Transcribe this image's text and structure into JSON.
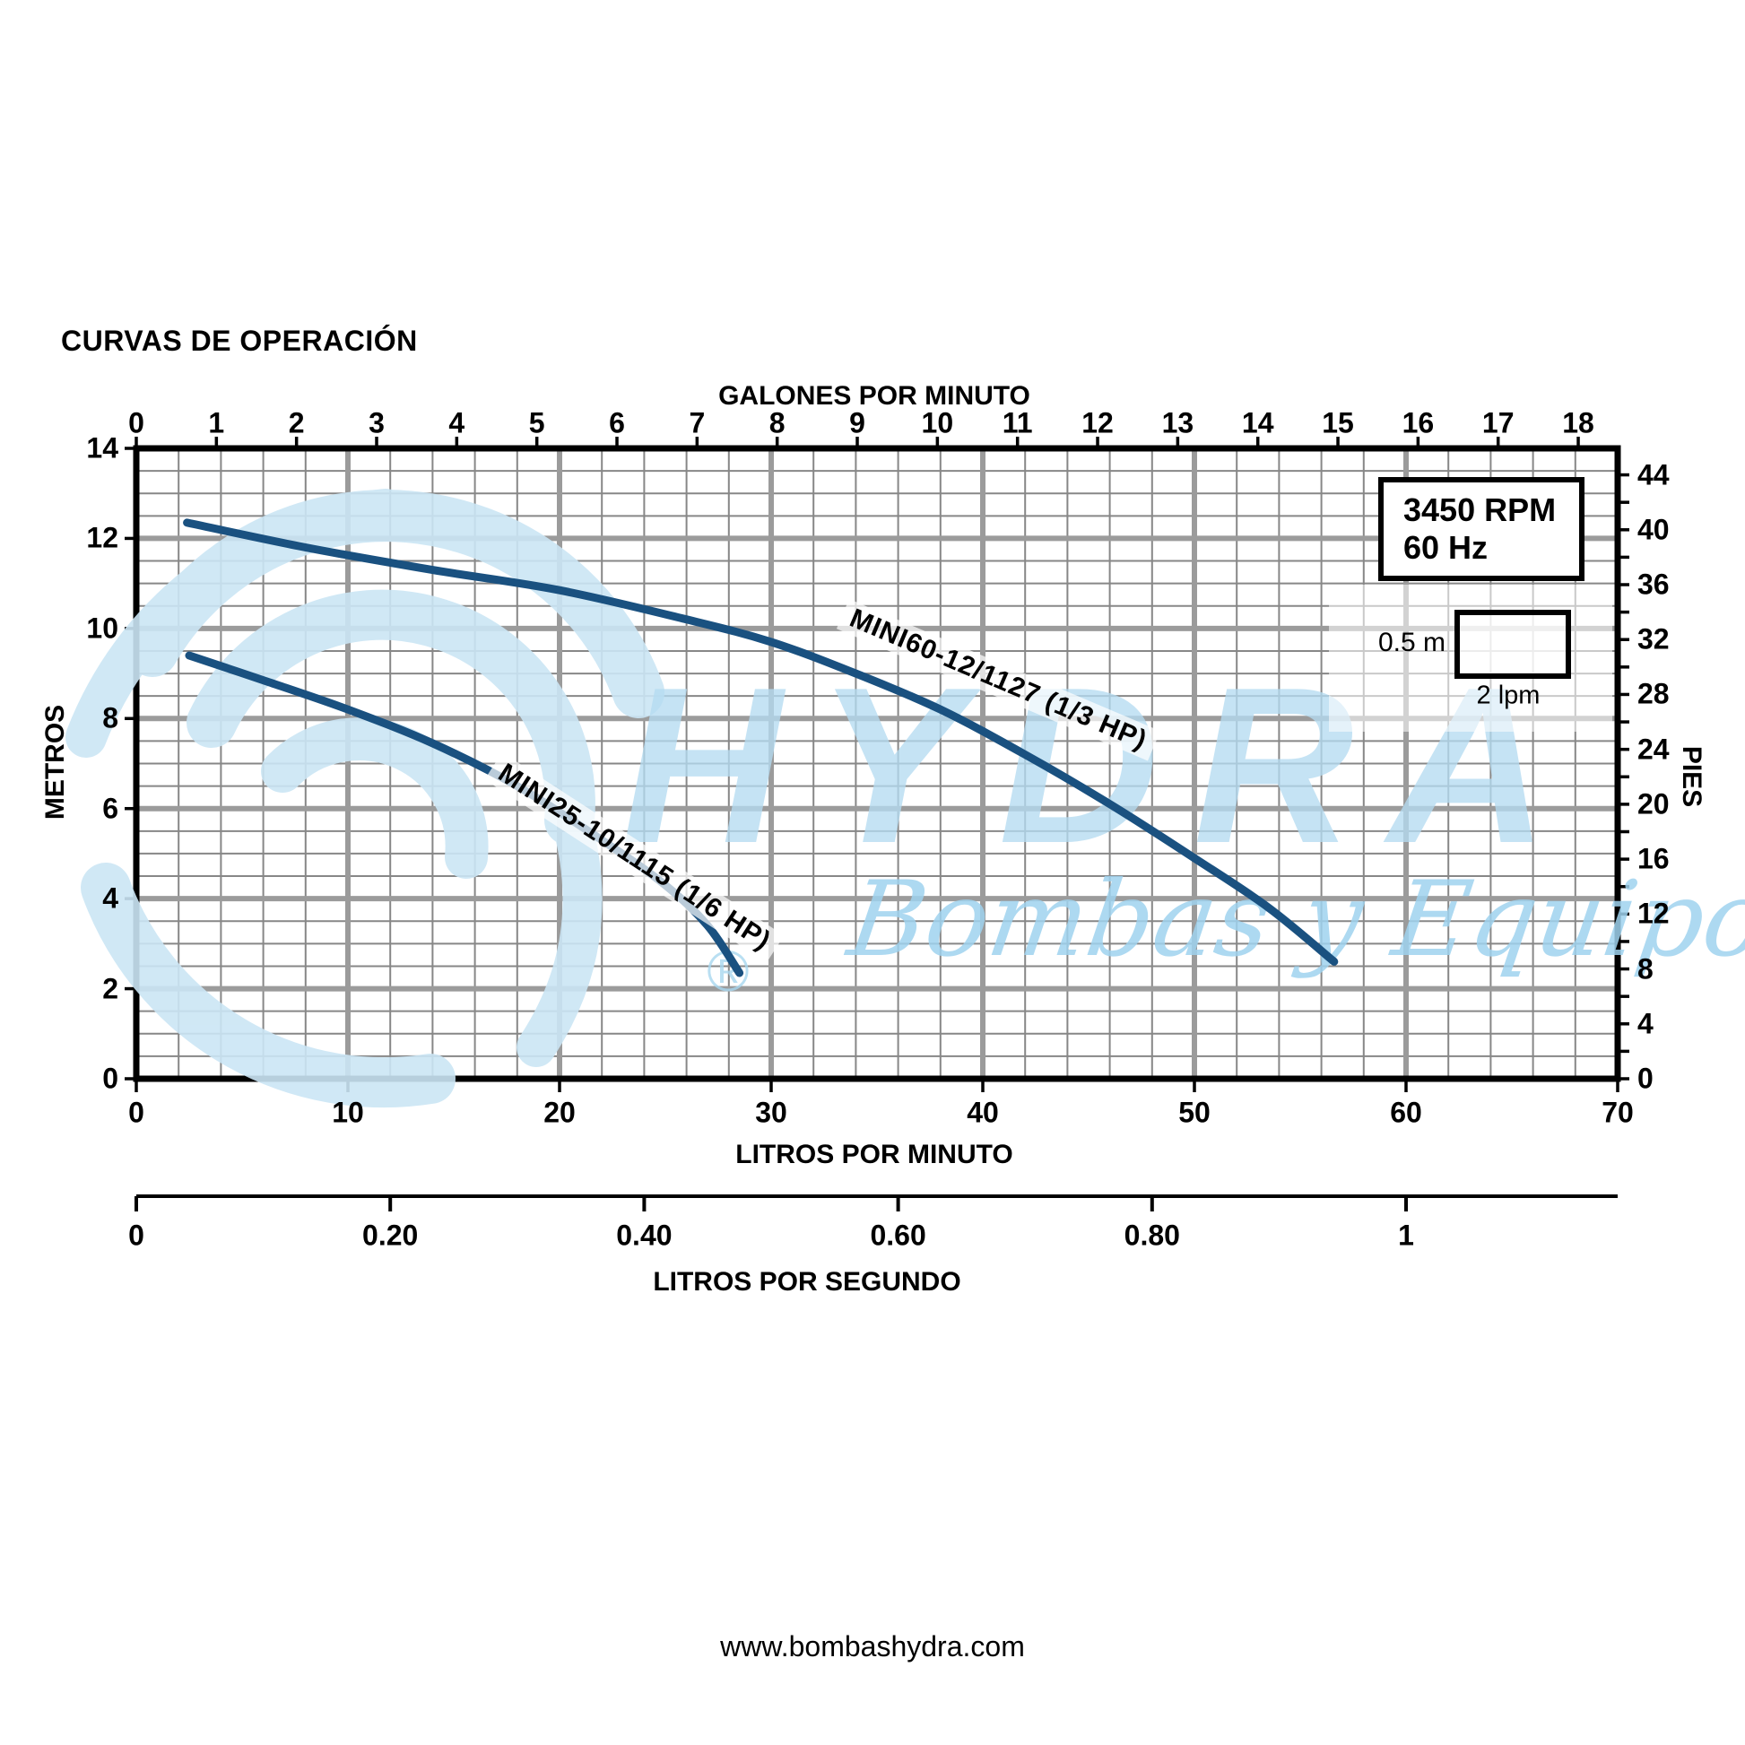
{
  "page": {
    "title": "CURVAS DE OPERACIÓN",
    "footer_url": "www.bombashydra.com"
  },
  "legend": {
    "line1": "3450 RPM",
    "line2": "60 Hz"
  },
  "scale_indicator": {
    "vertical": "0.5 m",
    "horizontal": "2 lpm"
  },
  "watermark": {
    "brand": "HYDRA",
    "tagline": "Bombas y Equipos",
    "registered": "®"
  },
  "colors": {
    "curve": "#1a5180",
    "grid_minor": "#878787",
    "grid_major": "#9b9b9b",
    "frame": "#000000",
    "watermark_blue": "#b5dcf2",
    "watermark_script": "#9fd3ef",
    "swirl": "#cbe6f5"
  },
  "chart_data": {
    "type": "line",
    "title": "CURVAS DE OPERACIÓN",
    "grid": "on",
    "x_axis_bottom": {
      "label": "LITROS POR MINUTO",
      "range": [
        0,
        70
      ],
      "ticks": [
        0,
        10,
        20,
        30,
        40,
        50,
        60,
        70
      ],
      "minor_step": 2,
      "major_step": 10
    },
    "x_axis_top": {
      "label": "GALONES POR MINUTO",
      "ticks": [
        0,
        1,
        2,
        3,
        4,
        5,
        6,
        7,
        8,
        9,
        10,
        11,
        12,
        13,
        14,
        15,
        16,
        17,
        18
      ],
      "lpm_per_gal": 3.78541
    },
    "y_axis_left": {
      "label": "METROS",
      "range": [
        0,
        14
      ],
      "ticks": [
        0,
        2,
        4,
        6,
        8,
        10,
        12,
        14
      ],
      "minor_step": 0.5,
      "major_step": 2
    },
    "y_axis_right": {
      "label": "PIES",
      "ticks": [
        0,
        4,
        8,
        12,
        16,
        20,
        24,
        28,
        32,
        36,
        40,
        44
      ],
      "minor_tick_step": 2,
      "ft_per_m": 3.28084
    },
    "x_axis_seconds": {
      "label": "LITROS POR SEGUNDO",
      "ticks": [
        {
          "value": 0,
          "text": "0"
        },
        {
          "value": 0.2,
          "text": "0.20"
        },
        {
          "value": 0.4,
          "text": "0.40"
        },
        {
          "value": 0.6,
          "text": "0.60"
        },
        {
          "value": 0.8,
          "text": "0.80"
        },
        {
          "value": 1,
          "text": "1"
        }
      ],
      "lpm_per_ls": 60
    },
    "series": [
      {
        "name": "MINI60-12/1127 (1/3 HP)",
        "power": "1/3 HP",
        "points": [
          [
            2.4,
            12.35
          ],
          [
            8,
            11.8
          ],
          [
            14,
            11.3
          ],
          [
            20,
            10.85
          ],
          [
            26,
            10.2
          ],
          [
            30,
            9.7
          ],
          [
            34,
            9.0
          ],
          [
            38,
            8.2
          ],
          [
            42,
            7.2
          ],
          [
            46,
            6.1
          ],
          [
            50,
            4.9
          ],
          [
            53.5,
            3.8
          ],
          [
            56.6,
            2.6
          ]
        ],
        "label_anchor_lpm": 33.7,
        "label_anchor_m": 10.65,
        "label_angle_deg": 23
      },
      {
        "name": "MINI25-10/1115 (1/6 HP)",
        "power": "1/6 HP",
        "points": [
          [
            2.5,
            9.4
          ],
          [
            6,
            8.85
          ],
          [
            10,
            8.2
          ],
          [
            14,
            7.45
          ],
          [
            18,
            6.5
          ],
          [
            22,
            5.3
          ],
          [
            25,
            4.3
          ],
          [
            27,
            3.4
          ],
          [
            28.5,
            2.35
          ]
        ],
        "label_anchor_lpm": 17.3,
        "label_anchor_m": 7.25,
        "label_angle_deg": 33
      }
    ],
    "annotations": {
      "rpm_box": [
        "3450 RPM",
        "60 Hz"
      ],
      "scale_box": {
        "height_label": "0.5 m",
        "width_label": "2 lpm"
      }
    }
  }
}
